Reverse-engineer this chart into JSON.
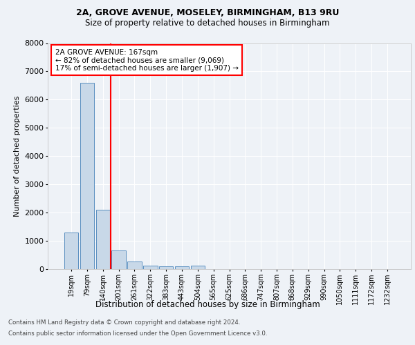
{
  "title1": "2A, GROVE AVENUE, MOSELEY, BIRMINGHAM, B13 9RU",
  "title2": "Size of property relative to detached houses in Birmingham",
  "xlabel": "Distribution of detached houses by size in Birmingham",
  "ylabel": "Number of detached properties",
  "categories": [
    "19sqm",
    "79sqm",
    "140sqm",
    "201sqm",
    "261sqm",
    "322sqm",
    "383sqm",
    "443sqm",
    "504sqm",
    "565sqm",
    "625sqm",
    "686sqm",
    "747sqm",
    "807sqm",
    "868sqm",
    "929sqm",
    "990sqm",
    "1050sqm",
    "1111sqm",
    "1172sqm",
    "1232sqm"
  ],
  "values": [
    1300,
    6600,
    2100,
    650,
    280,
    130,
    100,
    100,
    130,
    0,
    0,
    0,
    0,
    0,
    0,
    0,
    0,
    0,
    0,
    0,
    0
  ],
  "bar_color": "#c8d8e8",
  "bar_edge_color": "#5a8fc0",
  "red_line_x": 2.5,
  "annotation_text": "2A GROVE AVENUE: 167sqm\n← 82% of detached houses are smaller (9,069)\n17% of semi-detached houses are larger (1,907) →",
  "annotation_box_color": "white",
  "annotation_box_edge_color": "red",
  "ylim": [
    0,
    8000
  ],
  "yticks": [
    0,
    1000,
    2000,
    3000,
    4000,
    5000,
    6000,
    7000,
    8000
  ],
  "footer1": "Contains HM Land Registry data © Crown copyright and database right 2024.",
  "footer2": "Contains public sector information licensed under the Open Government Licence v3.0.",
  "bg_color": "#eef2f7",
  "plot_bg_color": "#eef2f7",
  "grid_color": "#ffffff"
}
